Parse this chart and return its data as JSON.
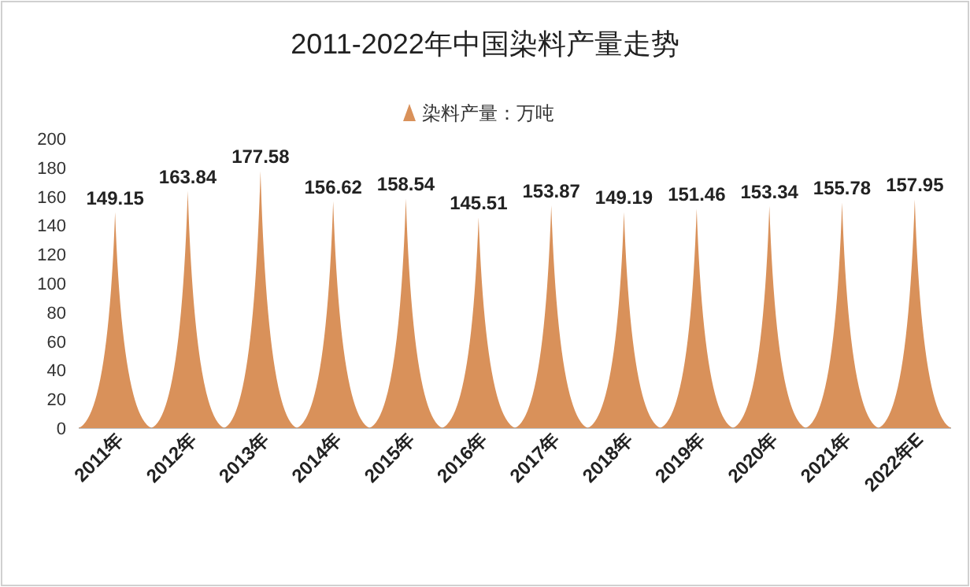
{
  "chart_data": {
    "type": "bar",
    "title": "2011-2022年中国染料产量走势",
    "categories": [
      "2011年",
      "2012年",
      "2013年",
      "2014年",
      "2015年",
      "2016年",
      "2017年",
      "2018年",
      "2019年",
      "2020年",
      "2021年",
      "2022年E"
    ],
    "series": [
      {
        "name": "染料产量：万吨",
        "color": "#d9915a",
        "values": [
          149.15,
          163.84,
          177.58,
          156.62,
          158.54,
          145.51,
          153.87,
          149.19,
          151.46,
          153.34,
          155.78,
          157.95
        ]
      }
    ],
    "ylim": [
      0,
      200
    ],
    "yticks": [
      0,
      20,
      40,
      60,
      80,
      100,
      120,
      140,
      160,
      180,
      200
    ],
    "grid": false,
    "legend": "top",
    "data_labels": true
  }
}
